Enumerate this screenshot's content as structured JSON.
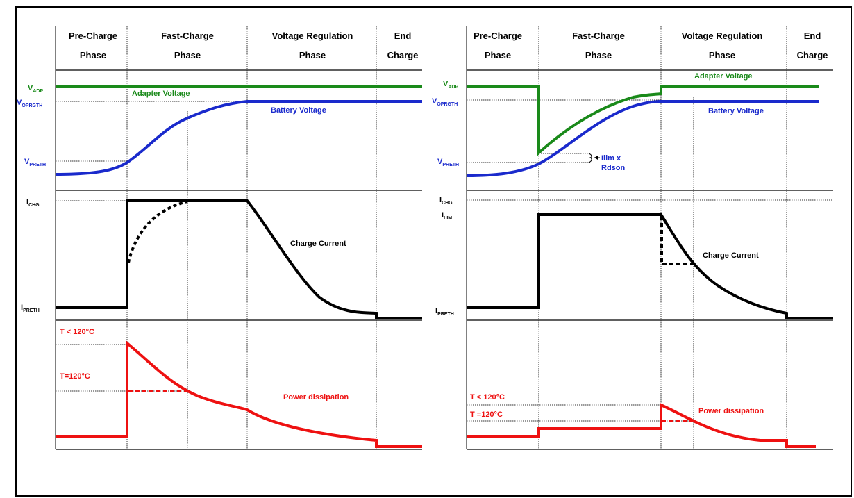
{
  "colors": {
    "adapter": "#1a8a1a",
    "battery": "#1a2acc",
    "current": "#000000",
    "power": "#ee1111"
  },
  "left": {
    "phases": [
      {
        "line1": "Pre-Charge",
        "line2": "Phase"
      },
      {
        "line1": "Fast-Charge",
        "line2": "Phase"
      },
      {
        "line1": "Voltage Regulation",
        "line2": "Phase"
      },
      {
        "line1": "End",
        "line2": "Charge"
      }
    ],
    "v_adp": {
      "main": "V",
      "sub": "ADP"
    },
    "v_oprgth": {
      "main": "V",
      "sub": "OPRGTH"
    },
    "v_preth": {
      "main": "V",
      "sub": "PRETH"
    },
    "i_chg": {
      "main": "I",
      "sub": "CHG"
    },
    "i_preth": {
      "main": "I",
      "sub": "PRETH"
    },
    "adapter_voltage": "Adapter Voltage",
    "battery_voltage": "Battery Voltage",
    "charge_current": "Charge Current",
    "t_le": "T < 120°C",
    "t_eq": "T=120°C",
    "power_dissipation": "Power dissipation"
  },
  "right": {
    "phases": [
      {
        "line1": "Pre-Charge",
        "line2": "Phase"
      },
      {
        "line1": "Fast-Charge",
        "line2": "Phase"
      },
      {
        "line1": "Voltage Regulation",
        "line2": "Phase"
      },
      {
        "line1": "End",
        "line2": "Charge"
      }
    ],
    "v_adp": {
      "main": "V",
      "sub": "ADP"
    },
    "v_oprgth": {
      "main": "V",
      "sub": "OPRGTH"
    },
    "v_preth": {
      "main": "V",
      "sub": "PRETH"
    },
    "i_chg": {
      "main": "I",
      "sub": "CHG"
    },
    "i_lim": {
      "main": "I",
      "sub": "LIM"
    },
    "i_preth": {
      "main": "I",
      "sub": "PRETH"
    },
    "adapter_voltage": "Adapter Voltage",
    "battery_voltage": "Battery Voltage",
    "charge_current": "Charge Current",
    "ilim_rdson_line1": "Ilim x",
    "ilim_rdson_line2": "Rdson",
    "t_le": "T < 120°C",
    "t_eq": "T =120°C",
    "power_dissipation": "Power dissipation"
  }
}
